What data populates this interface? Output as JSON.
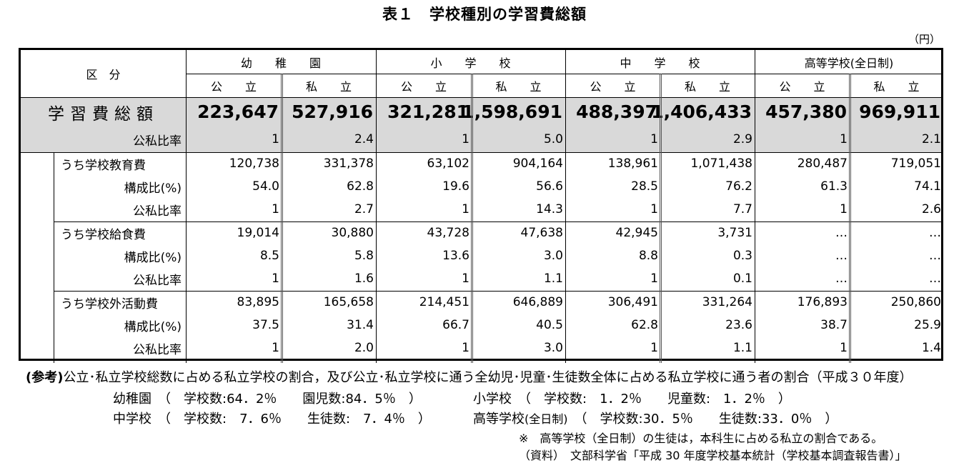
{
  "title": "表１　学校種別の学習費総額",
  "unit": "（円）",
  "header": {
    "kubun": "区　分",
    "groups": [
      "幼　　稚　　園",
      "小　　学　　校",
      "中　　学　　校",
      "高等学校(全日制)"
    ],
    "sub": [
      "公　　立",
      "私　　立",
      "公　　立",
      "私　　立",
      "公　　立",
      "私　　立",
      "公　　立",
      "私　　立"
    ]
  },
  "total": {
    "label": "学習費総額",
    "values": [
      "223,647",
      "527,916",
      "321,281",
      "1,598,691",
      "488,397",
      "1,406,433",
      "457,380",
      "969,911"
    ],
    "ratio_label": "公私比率",
    "ratio": [
      "1",
      "2.4",
      "1",
      "5.0",
      "1",
      "2.9",
      "1",
      "2.1"
    ]
  },
  "sections": [
    {
      "label": "うち学校教育費",
      "values": [
        "120,738",
        "331,378",
        "63,102",
        "904,164",
        "138,961",
        "1,071,438",
        "280,487",
        "719,051"
      ],
      "comp_label": "構成比(%)",
      "comp": [
        "54.0",
        "62.8",
        "19.6",
        "56.6",
        "28.5",
        "76.2",
        "61.3",
        "74.1"
      ],
      "ratio_label": "公私比率",
      "ratio": [
        "1",
        "2.7",
        "1",
        "14.3",
        "1",
        "7.7",
        "1",
        "2.6"
      ]
    },
    {
      "label": "うち学校給食費",
      "values": [
        "19,014",
        "30,880",
        "43,728",
        "47,638",
        "42,945",
        "3,731",
        "…",
        "…"
      ],
      "comp_label": "構成比(%)",
      "comp": [
        "8.5",
        "5.8",
        "13.6",
        "3.0",
        "8.8",
        "0.3",
        "…",
        "…"
      ],
      "ratio_label": "公私比率",
      "ratio": [
        "1",
        "1.6",
        "1",
        "1.1",
        "1",
        "0.1",
        "…",
        "…"
      ]
    },
    {
      "label": "うち学校外活動費",
      "values": [
        "83,895",
        "165,658",
        "214,451",
        "646,889",
        "306,491",
        "331,264",
        "176,893",
        "250,860"
      ],
      "comp_label": "構成比(%)",
      "comp": [
        "37.5",
        "31.4",
        "66.7",
        "40.5",
        "62.8",
        "23.6",
        "38.7",
        "25.9"
      ],
      "ratio_label": "公私比率",
      "ratio": [
        "1",
        "2.0",
        "1",
        "3.0",
        "1",
        "1.1",
        "1",
        "1.4"
      ]
    }
  ],
  "notes": {
    "ref_head": "(参考)",
    "ref_text": "公立･私立学校総数に占める私立学校の割合，及び公立･私立学校に通う全幼児･児童･生徒数全体に占める私立学校に通う者の割合（平成３０年度）",
    "line2a": "幼稚園　（　学校数:64．2％　　園児数:84．5％　）",
    "line2b": "小学校　（　学校数:　1．2％　　児童数:　1．2％　）",
    "line3a": "中学校　（　学校数:　7．6％　　生徒数:　7．4％　）",
    "line3b_main": "高等学校",
    "line3b_small": "(全日制)",
    "line3b_rest": "　（　学校数:30．5％　　生徒数:33．0％　）",
    "note_star": "※　高等学校（全日制）の生徒は，本科生に占める私立の割合である。",
    "source": "（資料）　文部科学省「平成 30 年度学校基本統計（学校基本調査報告書）」"
  }
}
